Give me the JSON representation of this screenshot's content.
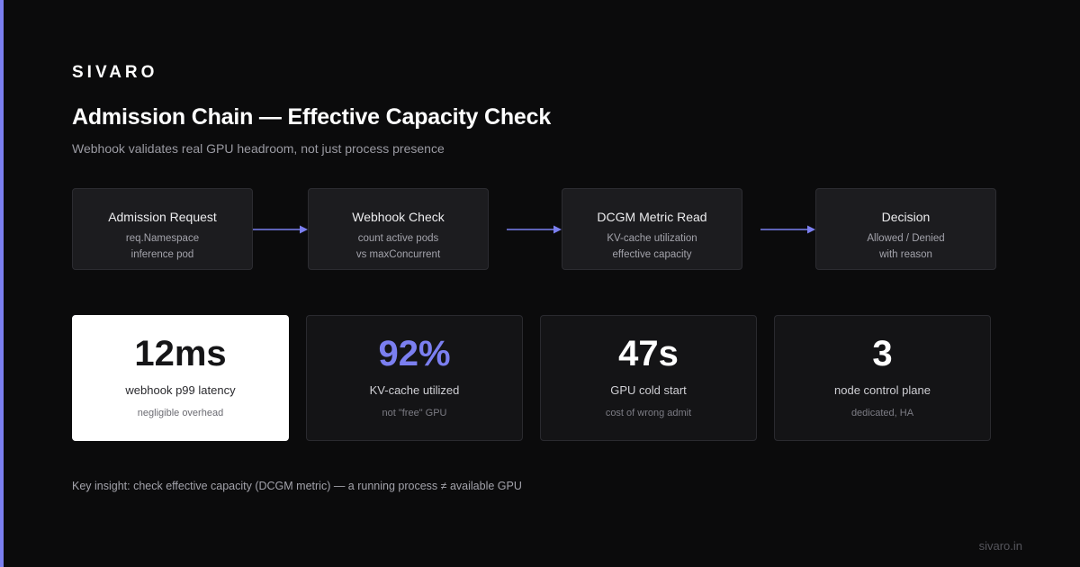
{
  "brand": "SIVARO",
  "title": "Admission Chain — Effective Capacity Check",
  "subtitle": "Webhook validates real GPU headroom, not just process presence",
  "flow": [
    {
      "title": "Admission Request",
      "lines": [
        "req.Namespace",
        "inference pod"
      ]
    },
    {
      "title": "Webhook Check",
      "lines": [
        "count active pods",
        "vs maxConcurrent"
      ]
    },
    {
      "title": "DCGM Metric Read",
      "lines": [
        "KV-cache utilization",
        "effective capacity"
      ]
    },
    {
      "title": "Decision",
      "lines": [
        "Allowed / Denied",
        "with reason"
      ]
    }
  ],
  "stats": [
    {
      "value": "12ms",
      "label": "webhook p99 latency",
      "note": "negligible overhead"
    },
    {
      "value": "92%",
      "label": "KV-cache utilized",
      "note": "not \"free\" GPU"
    },
    {
      "value": "47s",
      "label": "GPU cold start",
      "note": "cost of wrong admit"
    },
    {
      "value": "3",
      "label": "node control plane",
      "note": "dedicated, HA"
    }
  ],
  "insight": "Key insight: check effective capacity (DCGM metric) — a running process ≠ available GPU",
  "footer_url": "sivaro.in",
  "colors": {
    "accent": "#7b7ff0",
    "background": "#0b0b0c",
    "box": "#1c1c1f",
    "highlight_card": "#ffffff"
  }
}
